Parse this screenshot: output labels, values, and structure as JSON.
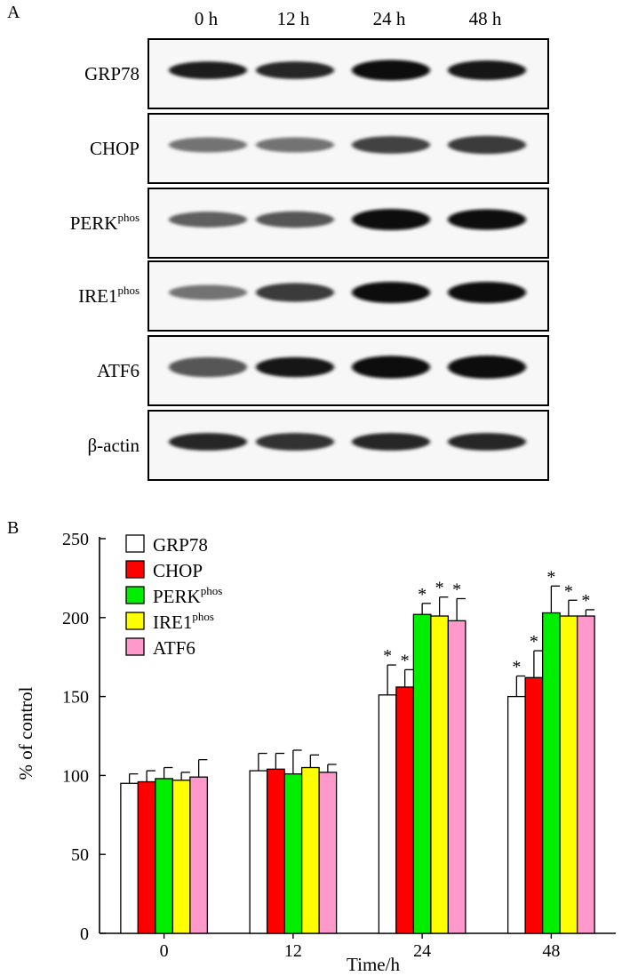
{
  "panel_a": {
    "letter": "A",
    "time_labels": [
      "0 h",
      "12 h",
      "24 h",
      "48 h"
    ],
    "rows": [
      {
        "label": "GRP78",
        "sup": "",
        "intensity": [
          0.9,
          0.85,
          1.0,
          0.95
        ],
        "thickness": [
          0.7,
          0.7,
          0.95,
          0.85
        ]
      },
      {
        "label": "CHOP",
        "sup": "",
        "intensity": [
          0.45,
          0.45,
          0.7,
          0.75
        ],
        "thickness": [
          0.5,
          0.5,
          0.7,
          0.75
        ]
      },
      {
        "label": "PERK",
        "sup": "phos",
        "intensity": [
          0.55,
          0.6,
          1.0,
          1.0
        ],
        "thickness": [
          0.55,
          0.6,
          1.0,
          0.95
        ]
      },
      {
        "label": "IRE1",
        "sup": "phos",
        "intensity": [
          0.45,
          0.75,
          1.0,
          1.0
        ],
        "thickness": [
          0.5,
          0.8,
          1.0,
          1.0
        ]
      },
      {
        "label": "ATF6",
        "sup": "",
        "intensity": [
          0.6,
          0.95,
          1.0,
          1.0
        ],
        "thickness": [
          0.9,
          0.9,
          1.1,
          1.15
        ]
      },
      {
        "label": "β-actin",
        "sup": "",
        "intensity": [
          0.85,
          0.8,
          0.85,
          0.85
        ],
        "thickness": [
          0.7,
          0.7,
          0.7,
          0.7
        ]
      }
    ]
  },
  "panel_b": {
    "letter": "B"
  },
  "chart_data": {
    "type": "bar",
    "categories": [
      "0",
      "12",
      "24",
      "48"
    ],
    "xlabel": "Time/h",
    "ylabel": "% of control",
    "ylim": [
      0,
      250
    ],
    "yticks": [
      0,
      50,
      100,
      150,
      200,
      250
    ],
    "grid": false,
    "legend_position": "top-left",
    "significance_marker": "*",
    "series": [
      {
        "name": "GRP78",
        "sup": "",
        "color": "#ffffff",
        "values": [
          95,
          103,
          151,
          150
        ],
        "errors": [
          6,
          11,
          19,
          13
        ],
        "significant": [
          false,
          false,
          true,
          true
        ]
      },
      {
        "name": "CHOP",
        "sup": "",
        "color": "#ff0000",
        "values": [
          96,
          104,
          156,
          162
        ],
        "errors": [
          7,
          10,
          11,
          17
        ],
        "significant": [
          false,
          false,
          true,
          true
        ]
      },
      {
        "name": "PERK",
        "sup": "phos",
        "color": "#00ee00",
        "values": [
          98,
          101,
          202,
          203
        ],
        "errors": [
          7,
          15,
          7,
          17
        ],
        "significant": [
          false,
          false,
          true,
          true
        ]
      },
      {
        "name": "IRE1",
        "sup": "phos",
        "color": "#ffff00",
        "values": [
          97,
          105,
          201,
          201
        ],
        "errors": [
          5,
          8,
          12,
          10
        ],
        "significant": [
          false,
          false,
          true,
          true
        ]
      },
      {
        "name": "ATF6",
        "sup": "",
        "color": "#ff99cc",
        "values": [
          99,
          102,
          198,
          201
        ],
        "errors": [
          11,
          5,
          14,
          4
        ],
        "significant": [
          false,
          false,
          true,
          true
        ]
      }
    ]
  }
}
